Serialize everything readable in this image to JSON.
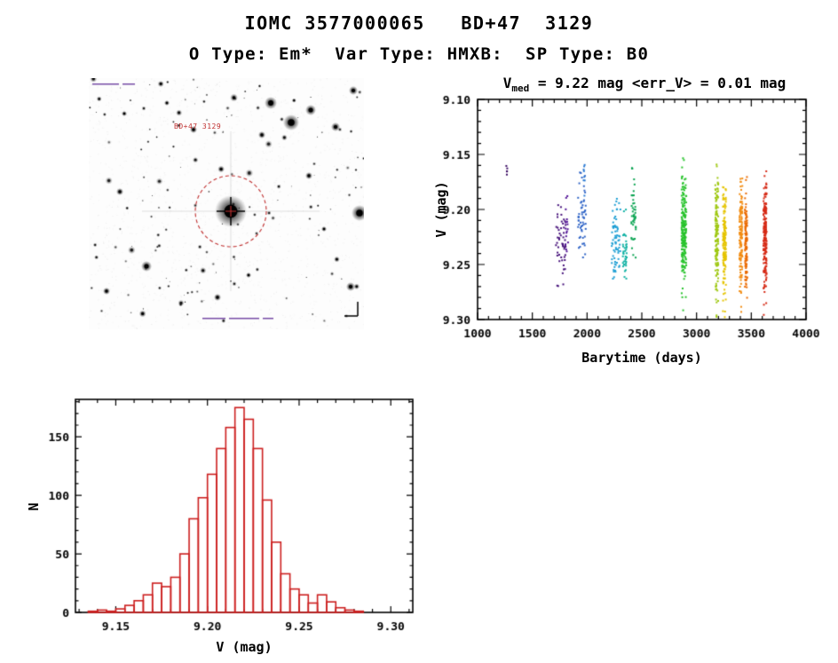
{
  "header": {
    "title": "IOMC 3577000065   BD+47  3129",
    "subtitle": "O Type: Em*  Var Type: HMXB:  SP Type: B0"
  },
  "finder_chart": {
    "target_label": "BD+47 3129",
    "marker_color": "#c03030"
  },
  "chart_data": [
    {
      "id": "lightcurve",
      "type": "scatter",
      "title": "V_med = 9.22 mag <err_V> = 0.01 mag",
      "title_parts": {
        "prefix": "V",
        "sub": "med",
        "rest": " = 9.22 mag <err_V> = 0.01 mag"
      },
      "xlabel": "Barytime (days)",
      "ylabel": "V (mag)",
      "xlim": [
        1000,
        4000
      ],
      "ylim": [
        9.1,
        9.3
      ],
      "y_axis": "magnitude axis, brighter (9.10) at top",
      "xticks": [
        1000,
        1500,
        2000,
        2500,
        3000,
        3500,
        4000
      ],
      "yticks": [
        9.1,
        9.15,
        9.2,
        9.25,
        9.3
      ],
      "x_minor_step": 100,
      "y_minor_step": 0.01,
      "v_median_mag": 9.22,
      "err_v_mag": 0.01,
      "legend": "point color encodes observing epoch (violet=early, red=late)",
      "clusters": [
        {
          "t": 1268,
          "t_spread": 6,
          "v": 9.165,
          "v_spread": 0.003,
          "n": 5,
          "color": "#3a0b63"
        },
        {
          "t": 1760,
          "t_spread": 45,
          "v": 9.229,
          "v_spread": 0.019,
          "n": 50,
          "color": "#45107a"
        },
        {
          "t": 1815,
          "t_spread": 12,
          "v": 9.213,
          "v_spread": 0.013,
          "n": 16,
          "color": "#511296"
        },
        {
          "t": 1950,
          "t_spread": 40,
          "v": 9.208,
          "v_spread": 0.019,
          "n": 55,
          "color": "#2e63c6"
        },
        {
          "t": 1975,
          "t_spread": 8,
          "v": 9.172,
          "v_spread": 0.01,
          "n": 8,
          "color": "#2a79d2"
        },
        {
          "t": 2265,
          "t_spread": 40,
          "v": 9.229,
          "v_spread": 0.018,
          "n": 70,
          "color": "#1f9fd4"
        },
        {
          "t": 2345,
          "t_spread": 18,
          "v": 9.24,
          "v_spread": 0.015,
          "n": 38,
          "color": "#12b2a4"
        },
        {
          "t": 2425,
          "t_spread": 22,
          "v": 9.208,
          "v_spread": 0.016,
          "n": 42,
          "color": "#0ba452"
        },
        {
          "t": 2408,
          "t_spread": 5,
          "v": 9.163,
          "v_spread": 0.003,
          "n": 3,
          "color": "#0ba452"
        },
        {
          "t": 2885,
          "t_spread": 22,
          "v": 9.217,
          "v_spread": 0.024,
          "n": 210,
          "color": "#28c32c"
        },
        {
          "t": 3185,
          "t_spread": 14,
          "v": 9.224,
          "v_spread": 0.026,
          "n": 150,
          "color": "#9fc813"
        },
        {
          "t": 3255,
          "t_spread": 14,
          "v": 9.227,
          "v_spread": 0.026,
          "n": 150,
          "color": "#e5c400"
        },
        {
          "t": 3405,
          "t_spread": 14,
          "v": 9.224,
          "v_spread": 0.023,
          "n": 130,
          "color": "#f28c12"
        },
        {
          "t": 3452,
          "t_spread": 10,
          "v": 9.227,
          "v_spread": 0.022,
          "n": 110,
          "color": "#ea6a00"
        },
        {
          "t": 3625,
          "t_spread": 14,
          "v": 9.221,
          "v_spread": 0.025,
          "n": 190,
          "color": "#d62a16"
        }
      ]
    },
    {
      "id": "v-histogram",
      "type": "bar",
      "title": "",
      "xlabel": "V (mag)",
      "ylabel": "N",
      "xlim": [
        9.128,
        9.312
      ],
      "ylim": [
        0,
        182
      ],
      "xticks": [
        9.15,
        9.2,
        9.25,
        9.3
      ],
      "yticks": [
        0,
        50,
        100,
        150
      ],
      "x_minor_step": 0.01,
      "y_minor_step": 10,
      "bin_start": 9.135,
      "bin_width": 0.005,
      "color": "#cc1f1f",
      "counts": [
        1,
        2,
        1,
        3,
        6,
        10,
        15,
        25,
        22,
        30,
        50,
        80,
        98,
        118,
        140,
        158,
        175,
        165,
        140,
        96,
        60,
        33,
        20,
        15,
        8,
        15,
        9,
        4,
        2,
        1
      ]
    }
  ]
}
